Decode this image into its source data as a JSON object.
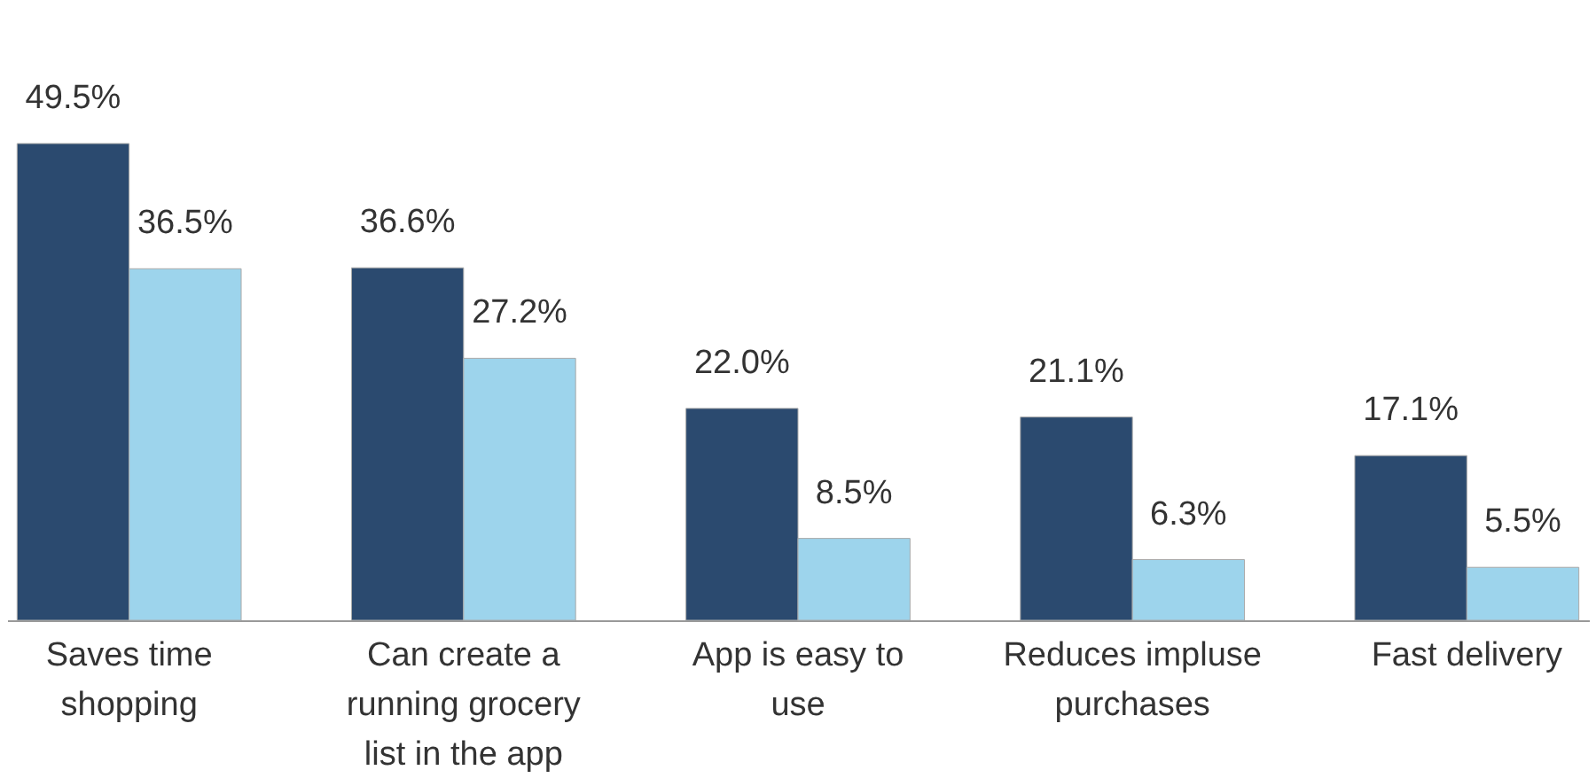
{
  "chart_data": {
    "type": "bar",
    "categories": [
      "Saves time shopping",
      "Can create a running grocery list in the app",
      "App is easy to use",
      "Reduces impluse purchases",
      "Fast delivery"
    ],
    "series": [
      {
        "color": "#2b4a6f",
        "values": [
          49.5,
          36.6,
          22.0,
          21.1,
          17.1
        ],
        "value_labels": [
          "49.5%",
          "36.6%",
          "22.0%",
          "21.1%",
          "17.1%"
        ]
      },
      {
        "color": "#9dd4ec",
        "values": [
          36.5,
          27.2,
          8.5,
          6.3,
          5.5
        ],
        "value_labels": [
          "36.5%",
          "27.2%",
          "8.5%",
          "6.3%",
          "5.5%"
        ]
      }
    ]
  }
}
